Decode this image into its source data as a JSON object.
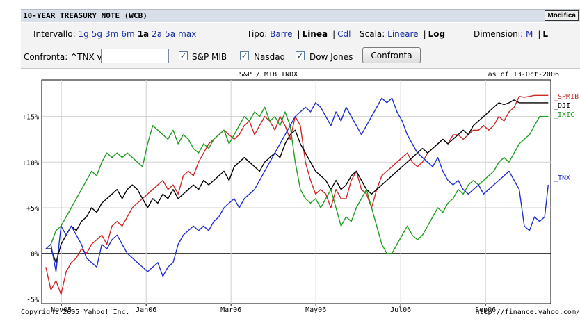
{
  "header": {
    "title": "10-YEAR TREASURY NOTE",
    "exchange": "(WCB)",
    "edit_button": "Modifica"
  },
  "controls": {
    "interval": {
      "label": "Intervallo:",
      "options": [
        "1g",
        "5g",
        "3m",
        "6m",
        "1a",
        "2a",
        "5a",
        "max"
      ],
      "selected": "1a"
    },
    "type": {
      "label": "Tipo:",
      "options": [
        "Barre",
        "Linea",
        "Cdl"
      ],
      "selected": "Linea"
    },
    "scale": {
      "label": "Scala:",
      "options": [
        "Lineare",
        "Log"
      ],
      "selected": "Log"
    },
    "size": {
      "label": "Dimensioni:",
      "options": [
        "M",
        "L"
      ],
      "selected": "L"
    }
  },
  "compare": {
    "label": "Confronta: ^TNX vs",
    "input_value": "",
    "checkboxes": [
      {
        "label": "S&P MIB",
        "checked": true
      },
      {
        "label": "Nasdaq",
        "checked": true
      },
      {
        "label": "Dow Jones",
        "checked": true
      }
    ],
    "button": "Confronta"
  },
  "chart_data": {
    "type": "line",
    "title": "S&P / MIB INDX",
    "as_of": "as of 13-Oct-2006",
    "ylim": [
      -5.5,
      19
    ],
    "yticks": [
      -5,
      0,
      5,
      10,
      15
    ],
    "ytick_labels": [
      "-5%",
      "0%",
      "+5%",
      "+10%",
      "+15%"
    ],
    "x_tick_labels": [
      "Nov05",
      "Jan06",
      "Mar06",
      "May06",
      "Jul06",
      "Sep06"
    ],
    "x_tick_positions": [
      0.0385,
      0.2052,
      0.3718,
      0.5385,
      0.7051,
      0.8718
    ],
    "footer_left": "Copyright 2005 Yahoo! Inc.",
    "footer_right": "http://finance.yahoo.com/",
    "series": [
      {
        "name": "_SPMIB",
        "color": "#d02828",
        "x": [
          0.008,
          0.018,
          0.028,
          0.038,
          0.048,
          0.058,
          0.068,
          0.078,
          0.088,
          0.098,
          0.108,
          0.118,
          0.128,
          0.138,
          0.148,
          0.158,
          0.168,
          0.178,
          0.188,
          0.198,
          0.208,
          0.218,
          0.228,
          0.238,
          0.248,
          0.258,
          0.268,
          0.278,
          0.288,
          0.298,
          0.308,
          0.318,
          0.328,
          0.338,
          0.348,
          0.358,
          0.368,
          0.378,
          0.388,
          0.398,
          0.408,
          0.418,
          0.428,
          0.438,
          0.448,
          0.458,
          0.468,
          0.478,
          0.488,
          0.498,
          0.508,
          0.518,
          0.528,
          0.538,
          0.548,
          0.558,
          0.568,
          0.578,
          0.588,
          0.598,
          0.608,
          0.618,
          0.628,
          0.638,
          0.648,
          0.658,
          0.668,
          0.678,
          0.688,
          0.698,
          0.708,
          0.718,
          0.728,
          0.738,
          0.748,
          0.758,
          0.768,
          0.778,
          0.788,
          0.798,
          0.808,
          0.818,
          0.828,
          0.838,
          0.848,
          0.858,
          0.868,
          0.878,
          0.888,
          0.898,
          0.908,
          0.918,
          0.928,
          0.938,
          0.948,
          0.958,
          0.968,
          0.978,
          0.988,
          0.995
        ],
        "values": [
          -1.5,
          -4,
          -3,
          -4.5,
          -2,
          -1,
          -0.5,
          0.5,
          0,
          1,
          1.5,
          2,
          1,
          3,
          3.5,
          3,
          4,
          5,
          5.5,
          6,
          6.5,
          7,
          7.5,
          8,
          7,
          7.5,
          6.5,
          8.5,
          9,
          8.5,
          10,
          11,
          12,
          12.5,
          13,
          13.5,
          13,
          12.5,
          13,
          14,
          14.5,
          13,
          14,
          15,
          14.5,
          13.5,
          15,
          14,
          12.5,
          15,
          14,
          10,
          8,
          6.5,
          7,
          6.5,
          5,
          7,
          6,
          6,
          8,
          9,
          7,
          6.5,
          5,
          7,
          8.5,
          9,
          9.5,
          10,
          10.5,
          11,
          10,
          9.5,
          10,
          11,
          11.5,
          12,
          12.5,
          12,
          13,
          13,
          12.5,
          13,
          13.5,
          13.5,
          14,
          13.5,
          14,
          15,
          14.5,
          15.5,
          16,
          17.2,
          17.1,
          17.2,
          17.3,
          17.3,
          17.3,
          17.3
        ]
      },
      {
        "name": "_DJI",
        "color": "#000000",
        "x": [
          0.008,
          0.018,
          0.028,
          0.038,
          0.048,
          0.058,
          0.068,
          0.078,
          0.088,
          0.098,
          0.108,
          0.118,
          0.128,
          0.138,
          0.148,
          0.158,
          0.168,
          0.178,
          0.188,
          0.198,
          0.208,
          0.218,
          0.228,
          0.238,
          0.248,
          0.258,
          0.268,
          0.278,
          0.288,
          0.298,
          0.308,
          0.318,
          0.328,
          0.338,
          0.348,
          0.358,
          0.368,
          0.378,
          0.388,
          0.398,
          0.408,
          0.418,
          0.428,
          0.438,
          0.448,
          0.458,
          0.468,
          0.478,
          0.488,
          0.498,
          0.508,
          0.518,
          0.528,
          0.538,
          0.548,
          0.558,
          0.568,
          0.578,
          0.588,
          0.598,
          0.608,
          0.618,
          0.628,
          0.638,
          0.648,
          0.658,
          0.668,
          0.678,
          0.688,
          0.698,
          0.708,
          0.718,
          0.728,
          0.738,
          0.748,
          0.758,
          0.768,
          0.778,
          0.788,
          0.798,
          0.808,
          0.818,
          0.828,
          0.838,
          0.848,
          0.858,
          0.868,
          0.878,
          0.888,
          0.898,
          0.908,
          0.918,
          0.928,
          0.938,
          0.948,
          0.958,
          0.968,
          0.978,
          0.988,
          0.995
        ],
        "values": [
          0.5,
          0.5,
          -1,
          1,
          2,
          3,
          2.5,
          3.5,
          4,
          5,
          4.5,
          5.5,
          6,
          6.5,
          7,
          6,
          7,
          7.5,
          7,
          6,
          5,
          6,
          5.5,
          6.5,
          6,
          7,
          6,
          6.5,
          7,
          7.5,
          7,
          8,
          7.5,
          8,
          8.5,
          9,
          8,
          9.5,
          10,
          10.5,
          10,
          9.5,
          9,
          10,
          10.5,
          11,
          10.5,
          12,
          13,
          13.5,
          12,
          11,
          10,
          9,
          8.5,
          8,
          7,
          8,
          7,
          7.5,
          8.5,
          9,
          8,
          7,
          6.5,
          7,
          7.5,
          8,
          8.5,
          9,
          9.5,
          10,
          10.5,
          11,
          11.5,
          11,
          11.5,
          12,
          12.5,
          12,
          12.5,
          13,
          13.5,
          13,
          14,
          14.5,
          15,
          15.5,
          16,
          16.5,
          16.3,
          16.5,
          16.8,
          16.5,
          16.5,
          16.5,
          16.5,
          16.5,
          16.5,
          16.5
        ]
      },
      {
        "name": "_IXIC",
        "color": "#1f9e1f",
        "x": [
          0.008,
          0.018,
          0.028,
          0.038,
          0.048,
          0.058,
          0.068,
          0.078,
          0.088,
          0.098,
          0.108,
          0.118,
          0.128,
          0.138,
          0.148,
          0.158,
          0.168,
          0.178,
          0.188,
          0.198,
          0.208,
          0.218,
          0.228,
          0.238,
          0.248,
          0.258,
          0.268,
          0.278,
          0.288,
          0.298,
          0.308,
          0.318,
          0.328,
          0.338,
          0.348,
          0.358,
          0.368,
          0.378,
          0.388,
          0.398,
          0.408,
          0.418,
          0.428,
          0.438,
          0.448,
          0.458,
          0.468,
          0.478,
          0.488,
          0.498,
          0.508,
          0.518,
          0.528,
          0.538,
          0.548,
          0.558,
          0.568,
          0.578,
          0.588,
          0.598,
          0.608,
          0.618,
          0.628,
          0.638,
          0.648,
          0.658,
          0.668,
          0.678,
          0.688,
          0.698,
          0.708,
          0.718,
          0.728,
          0.738,
          0.748,
          0.758,
          0.768,
          0.778,
          0.788,
          0.798,
          0.808,
          0.818,
          0.828,
          0.838,
          0.848,
          0.858,
          0.868,
          0.878,
          0.888,
          0.898,
          0.908,
          0.918,
          0.928,
          0.938,
          0.948,
          0.958,
          0.968,
          0.978,
          0.988,
          0.995
        ],
        "values": [
          0.5,
          1,
          2.5,
          3,
          4,
          5,
          6,
          7,
          8,
          9,
          8.5,
          10,
          11,
          10.5,
          11,
          10.5,
          11,
          10.5,
          10,
          9.5,
          12,
          14,
          13.5,
          13,
          12.5,
          13.5,
          12,
          13,
          12.5,
          11.5,
          11,
          12,
          11.5,
          12.5,
          13,
          13.5,
          12,
          13,
          14,
          15,
          14.5,
          15.5,
          15,
          16,
          14.5,
          15,
          14,
          15.5,
          14,
          10,
          7,
          6,
          5.5,
          6,
          5,
          6,
          7,
          5,
          3,
          4,
          3.5,
          5,
          6,
          7,
          5,
          3,
          1,
          0,
          0,
          1,
          2,
          3,
          2,
          1.5,
          2,
          3,
          4,
          5,
          4.5,
          5.5,
          6,
          7,
          6.5,
          7.5,
          8,
          7.5,
          8,
          8.5,
          9,
          10,
          10.5,
          10,
          11,
          12,
          12.5,
          13,
          14,
          15,
          15,
          15
        ]
      },
      {
        "name": "_TNX",
        "color": "#1f2fd0",
        "x": [
          0.008,
          0.018,
          0.028,
          0.038,
          0.048,
          0.058,
          0.068,
          0.078,
          0.088,
          0.098,
          0.108,
          0.118,
          0.128,
          0.138,
          0.148,
          0.158,
          0.168,
          0.178,
          0.188,
          0.198,
          0.208,
          0.218,
          0.228,
          0.238,
          0.248,
          0.258,
          0.268,
          0.278,
          0.288,
          0.298,
          0.308,
          0.318,
          0.328,
          0.338,
          0.348,
          0.358,
          0.368,
          0.378,
          0.388,
          0.398,
          0.408,
          0.418,
          0.428,
          0.438,
          0.448,
          0.458,
          0.468,
          0.478,
          0.488,
          0.498,
          0.508,
          0.518,
          0.528,
          0.538,
          0.548,
          0.558,
          0.568,
          0.578,
          0.588,
          0.598,
          0.608,
          0.618,
          0.628,
          0.638,
          0.648,
          0.658,
          0.668,
          0.678,
          0.688,
          0.698,
          0.708,
          0.718,
          0.728,
          0.738,
          0.748,
          0.758,
          0.768,
          0.778,
          0.788,
          0.798,
          0.808,
          0.818,
          0.828,
          0.838,
          0.848,
          0.858,
          0.868,
          0.878,
          0.888,
          0.898,
          0.908,
          0.918,
          0.928,
          0.938,
          0.948,
          0.958,
          0.968,
          0.978,
          0.988,
          0.995
        ],
        "values": [
          0.5,
          1,
          -2,
          3,
          2,
          3,
          2,
          1,
          -0.5,
          -1,
          -1.5,
          1,
          0.5,
          1.5,
          2,
          1,
          0,
          -0.5,
          -1,
          -1.5,
          -2,
          -1.5,
          -1,
          -2.5,
          -1.5,
          -1,
          1,
          2,
          2.5,
          3,
          2.5,
          3,
          2.5,
          3.5,
          4,
          5,
          5.5,
          6,
          5,
          6,
          6.5,
          7,
          8,
          9,
          10,
          11,
          12,
          13,
          14,
          15,
          15.5,
          16,
          15.5,
          16.5,
          16,
          15,
          14,
          15.5,
          14.5,
          16,
          15,
          14,
          13,
          14,
          15,
          16,
          17,
          16.5,
          17,
          15.5,
          14.5,
          13,
          12,
          11,
          10.5,
          10,
          9.5,
          10.5,
          9,
          8,
          7.5,
          8,
          7,
          6.5,
          7,
          7.5,
          6.5,
          7,
          7.5,
          8,
          8.5,
          9,
          8,
          7,
          3,
          2.5,
          4,
          3.5,
          4,
          7.5
        ]
      }
    ]
  }
}
